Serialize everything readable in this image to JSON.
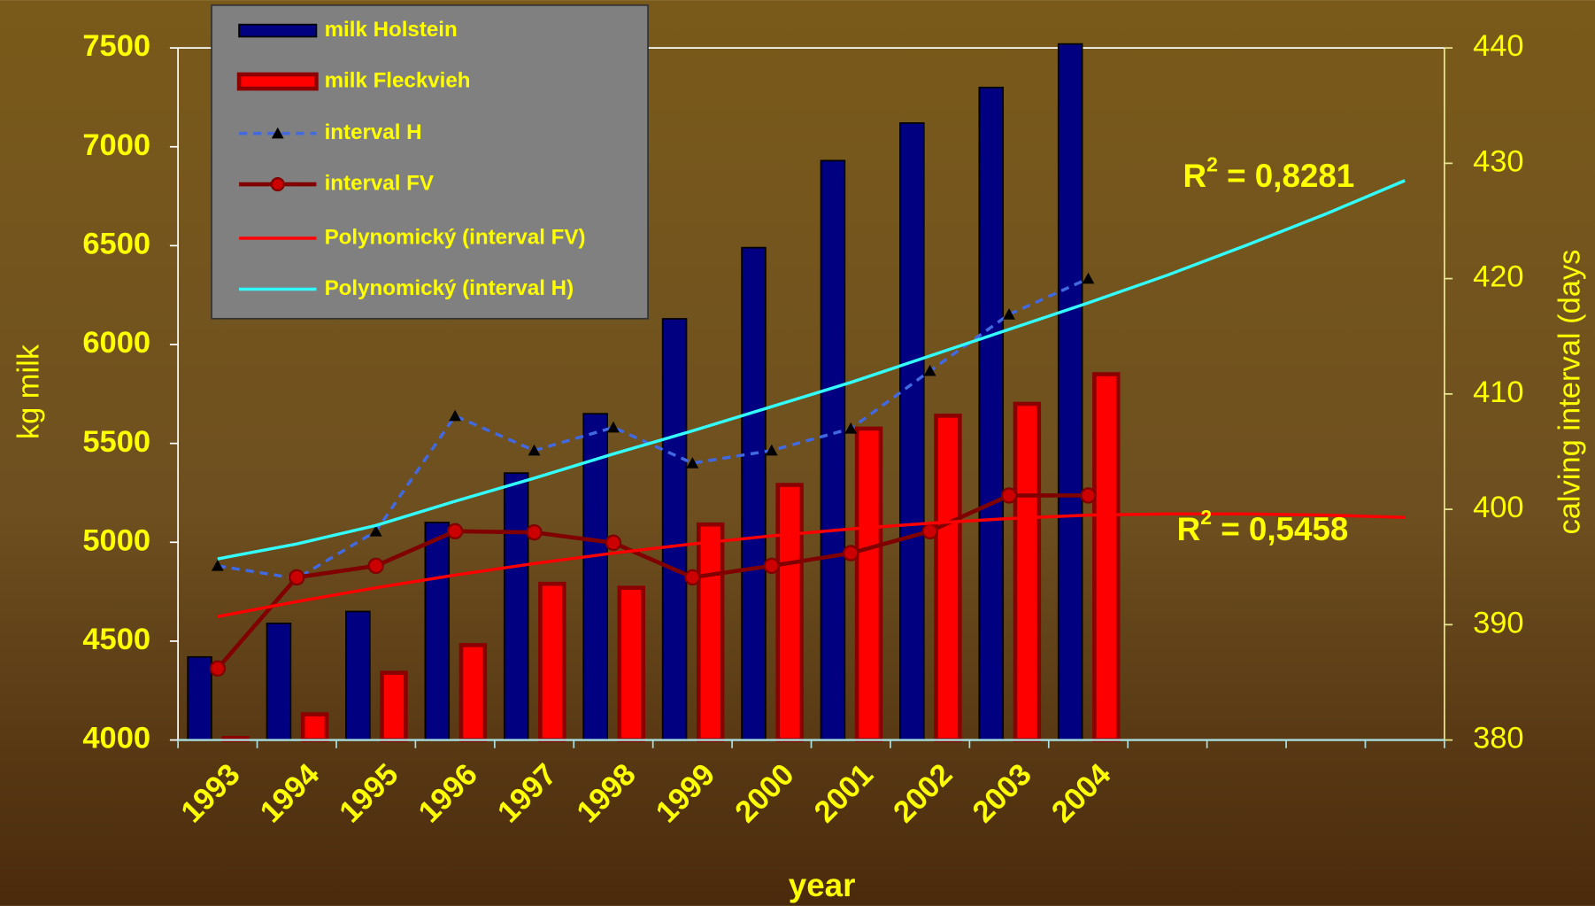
{
  "chart_data": {
    "type": "bar",
    "categories": [
      "1993",
      "1994",
      "1995",
      "1996",
      "1997",
      "1998",
      "1999",
      "2000",
      "2001",
      "2002",
      "2003",
      "2004",
      null,
      null,
      null,
      null
    ],
    "x_label": "year",
    "y_label": "kg milk",
    "y2_label": "calving interval (days",
    "ylim": [
      4000,
      7500
    ],
    "yticks": [
      4000,
      4500,
      5000,
      5500,
      6000,
      6500,
      7000,
      7500
    ],
    "y2lim": [
      380,
      440
    ],
    "y2ticks": [
      380,
      390,
      400,
      410,
      420,
      430,
      440
    ],
    "series": [
      {
        "name": "milk Holstein",
        "type": "bar",
        "color": "#000080",
        "values": [
          4420,
          4590,
          4650,
          5100,
          5350,
          5650,
          6130,
          6490,
          6930,
          7120,
          7300,
          7520,
          null,
          null,
          null,
          null
        ]
      },
      {
        "name": "milk Fleckvieh",
        "type": "bar",
        "color": "#ff0000",
        "values": [
          4010,
          4130,
          4340,
          4480,
          4790,
          4770,
          5090,
          5290,
          5575,
          5640,
          5700,
          5850,
          null,
          null,
          null,
          null
        ]
      },
      {
        "name": "interval H",
        "type": "line",
        "axis": "y2",
        "color": "#4169e1",
        "dashed": true,
        "marker": "triangle",
        "values": [
          395.1,
          394.0,
          398.1,
          408.1,
          405.1,
          407.1,
          404.0,
          405.1,
          407.0,
          412.0,
          416.9,
          420.0,
          null,
          null,
          null,
          null
        ]
      },
      {
        "name": "interval FV",
        "type": "line",
        "axis": "y2",
        "color": "#800000",
        "marker": "circle",
        "values": [
          386.2,
          394.1,
          395.1,
          398.1,
          398.0,
          397.1,
          394.1,
          395.1,
          396.2,
          398.1,
          401.2,
          401.2,
          null,
          null,
          null,
          null
        ]
      },
      {
        "name": "Polynomický (interval FV)",
        "type": "line",
        "axis": "y2",
        "color": "#ff0000",
        "values": [
          390.7,
          392.0,
          393.2,
          394.3,
          395.3,
          396.2,
          397.0,
          397.7,
          398.3,
          398.8,
          399.2,
          399.5,
          399.6,
          399.6,
          399.5,
          399.3
        ]
      },
      {
        "name": "Polynomický (interval H)",
        "type": "line",
        "axis": "y2",
        "color": "#33ffff",
        "values": [
          395.7,
          397.0,
          398.6,
          400.7,
          402.7,
          404.8,
          406.8,
          408.9,
          411.0,
          413.3,
          415.6,
          417.9,
          420.3,
          422.9,
          425.6,
          428.5
        ]
      }
    ],
    "annotations": [
      {
        "base": "R",
        "exponent": "2",
        "text": " = 0,8281"
      },
      {
        "base": "R",
        "exponent": "2",
        "text": " = 0,5458"
      }
    ]
  }
}
